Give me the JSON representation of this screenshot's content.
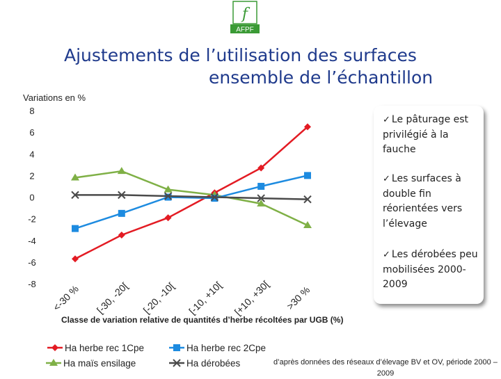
{
  "logo": {
    "glyph": "f",
    "text": "AFPF",
    "color": "#3a9a35"
  },
  "title": {
    "line1": "Ajustements de l’utilisation des surfaces",
    "line2": "ensemble de l’échantillon"
  },
  "notes": [
    "Le pâturage est privilégié à la fauche",
    "Les surfaces à double fin réorientées vers l’élevage",
    "Les dérobées peu mobilisées 2000-2009"
  ],
  "source": "d’après données des réseaux d’élevage BV et OV, période 2000 – 2009",
  "chart_data": {
    "type": "line",
    "ylabel": "Variations en %",
    "xlabel": "Classe de variation relative de quantités d’herbe récoltées par UGB (%)",
    "categories": [
      "<-30 %",
      "[-30, -20[",
      "[-20, -10[",
      "[-10, +10[",
      "[+10, +30[",
      ">30 %"
    ],
    "ylim": [
      -8,
      8
    ],
    "yticks": [
      8,
      6,
      4,
      2,
      0,
      -2,
      -4,
      -6,
      -8
    ],
    "grid": false,
    "legend": "bottom",
    "series": [
      {
        "name": "Ha herbe rec 1Cpe",
        "color": "#e31b23",
        "marker": "diamond",
        "values": [
          -5.7,
          -3.5,
          -1.9,
          0.4,
          2.7,
          6.5
        ]
      },
      {
        "name": "Ha maïs ensilage",
        "color": "#7fb046",
        "marker": "triangle",
        "values": [
          1.8,
          2.4,
          0.7,
          0.2,
          -0.6,
          -2.6
        ]
      },
      {
        "name": "Ha herbe rec 2Cpe",
        "color": "#1d8be0",
        "marker": "square",
        "values": [
          -2.9,
          -1.5,
          0.0,
          -0.1,
          1.0,
          2.0
        ]
      },
      {
        "name": "Ha dérobées",
        "color": "#4a4a4a",
        "marker": "x",
        "values": [
          0.2,
          0.2,
          0.1,
          0.0,
          -0.1,
          -0.2
        ]
      }
    ]
  }
}
